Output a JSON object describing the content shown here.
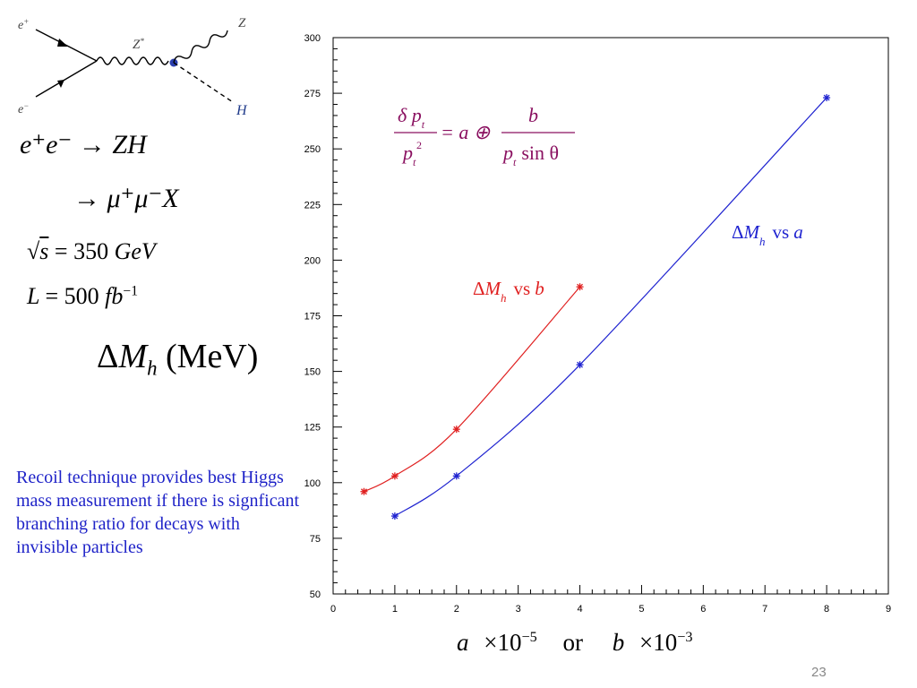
{
  "feynman": {
    "e_plus": "e+",
    "e_minus": "e−",
    "z_star": "Z*",
    "z": "Z",
    "h": "H",
    "colors": {
      "lines": "#000000",
      "higgs": "#1f3a8a",
      "vertex": "#2a3fb0"
    }
  },
  "equations": {
    "process_1": {
      "lhs": "e⁺e⁻",
      "arrow": "→",
      "rhs": "ZH"
    },
    "process_2": {
      "arrow": "→",
      "rhs": "μ⁺μ⁻X"
    },
    "energy": {
      "lhs": "s",
      "eq": "= 350",
      "unit": "GeV"
    },
    "lumi": {
      "lhs": "L",
      "eq": "= 500",
      "unit": "fb",
      "exp": "−1"
    }
  },
  "y_axis_title": {
    "delta": "Δ",
    "sym": "M",
    "sub": "h",
    "unit": "(MeV)"
  },
  "note": "Recoil technique provides best Higgs mass measurement if there is signficant branching ratio for decays with invisible particles",
  "x_axis_title": {
    "a": "a",
    "a_mult": "×10",
    "a_exp": "−5",
    "or": "or",
    "b": "b",
    "b_mult": "×10",
    "b_exp": "−3"
  },
  "formula": {
    "num_left": "δ p",
    "num_left_sub": "t",
    "den_left": "p",
    "den_left_sub": "t",
    "den_left_sup": "2",
    "mid": "= a ⊕",
    "num_right": "b",
    "den_right": "p",
    "den_right_sub": "t",
    "den_right_tail": "sin θ",
    "color": "#8a1060"
  },
  "slide_number": "23",
  "chart_data": {
    "type": "line",
    "xlim": [
      0,
      9
    ],
    "ylim": [
      50,
      300
    ],
    "x_ticks": [
      0,
      1,
      2,
      3,
      4,
      5,
      6,
      7,
      8,
      9
    ],
    "y_ticks": [
      50,
      75,
      100,
      125,
      150,
      175,
      200,
      225,
      250,
      275,
      300
    ],
    "grid": false,
    "series": [
      {
        "label_delta": "Δ",
        "label_sym": "M",
        "label_sub": "h",
        "label_vs": "vs",
        "label_var": "a",
        "color": "#1f23d0",
        "x": [
          1,
          2,
          4,
          8
        ],
        "y": [
          85,
          103,
          153,
          273
        ]
      },
      {
        "label_delta": "Δ",
        "label_sym": "M",
        "label_sub": "h",
        "label_vs": "vs",
        "label_var": "b",
        "color": "#e02020",
        "x": [
          0.5,
          1,
          2,
          4
        ],
        "y": [
          96,
          103,
          124,
          188
        ]
      }
    ]
  }
}
